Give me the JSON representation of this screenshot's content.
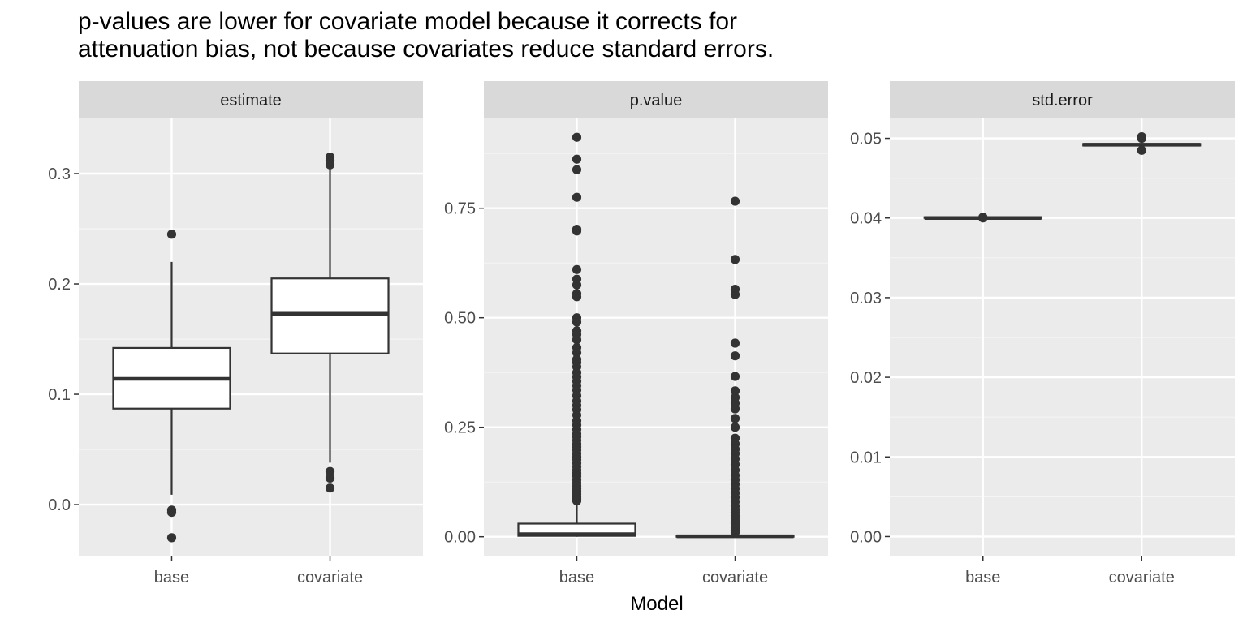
{
  "chart_data": {
    "type": "boxplot",
    "title_lines": [
      "p-values are lower for covariate model because it corrects for",
      "attenuation bias, not because covariates reduce standard errors."
    ],
    "xlabel": "Model",
    "ylabel": "",
    "categories": [
      "base",
      "covariate"
    ],
    "facets": [
      {
        "name": "estimate",
        "ylim": [
          -0.047,
          0.35
        ],
        "y_ticks": [
          0.0,
          0.1,
          0.2,
          0.3
        ],
        "y_tick_labels": [
          "0.0",
          "0.1",
          "0.2",
          "0.3"
        ],
        "y_minor": [
          -0.05,
          0.05,
          0.15,
          0.25
        ],
        "boxes": [
          {
            "category": "base",
            "lower_whisker": 0.009,
            "q1": 0.087,
            "median": 0.114,
            "q3": 0.142,
            "upper_whisker": 0.22,
            "outliers": [
              0.245,
              -0.005,
              -0.007,
              -0.03
            ]
          },
          {
            "category": "covariate",
            "lower_whisker": 0.038,
            "q1": 0.137,
            "median": 0.173,
            "q3": 0.205,
            "upper_whisker": 0.306,
            "outliers": [
              0.315,
              0.312,
              0.308,
              0.03,
              0.024,
              0.015
            ]
          }
        ]
      },
      {
        "name": "p.value",
        "ylim": [
          -0.045,
          0.955
        ],
        "y_ticks": [
          0.0,
          0.25,
          0.5,
          0.75
        ],
        "y_tick_labels": [
          "0.00",
          "0.25",
          "0.50",
          "0.75"
        ],
        "y_minor": [
          0.125,
          0.375,
          0.625,
          0.875
        ],
        "boxes": [
          {
            "category": "base",
            "lower_whisker": 0.0,
            "q1": 0.002,
            "median": 0.006,
            "q3": 0.03,
            "upper_whisker": 0.077,
            "outliers": [
              0.912,
              0.862,
              0.838,
              0.775,
              0.702,
              0.698,
              0.61,
              0.588,
              0.575,
              0.555,
              0.548,
              0.5,
              0.49,
              0.47,
              0.462,
              0.45,
              0.432,
              0.42,
              0.405,
              0.398,
              0.388,
              0.375,
              0.365,
              0.355,
              0.345,
              0.335,
              0.322,
              0.31,
              0.3,
              0.29,
              0.278,
              0.265,
              0.255,
              0.245,
              0.235,
              0.228,
              0.22,
              0.212,
              0.205,
              0.198,
              0.19,
              0.183,
              0.176,
              0.168,
              0.16,
              0.152,
              0.145,
              0.138,
              0.13,
              0.123,
              0.116,
              0.11,
              0.104,
              0.098,
              0.092,
              0.087,
              0.082
            ]
          },
          {
            "category": "covariate",
            "lower_whisker": 0.0,
            "q1": 0.0,
            "median": 0.001,
            "q3": 0.002,
            "upper_whisker": 0.005,
            "outliers": [
              0.766,
              0.633,
              0.565,
              0.553,
              0.442,
              0.413,
              0.366,
              0.333,
              0.318,
              0.305,
              0.292,
              0.27,
              0.25,
              0.225,
              0.212,
              0.2,
              0.19,
              0.178,
              0.165,
              0.152,
              0.14,
              0.13,
              0.12,
              0.11,
              0.1,
              0.09,
              0.08,
              0.07,
              0.062,
              0.055,
              0.048,
              0.042,
              0.036,
              0.03,
              0.025,
              0.02,
              0.015,
              0.01
            ]
          }
        ]
      },
      {
        "name": "std.error",
        "ylim": [
          -0.0025,
          0.0525
        ],
        "y_ticks": [
          0.0,
          0.01,
          0.02,
          0.03,
          0.04,
          0.05
        ],
        "y_tick_labels": [
          "0.00",
          "0.01",
          "0.02",
          "0.03",
          "0.04",
          "0.05"
        ],
        "y_minor": [
          0.005,
          0.015,
          0.025,
          0.035,
          0.045
        ],
        "boxes": [
          {
            "category": "base",
            "lower_whisker": 0.04,
            "q1": 0.04,
            "median": 0.04,
            "q3": 0.0401,
            "upper_whisker": 0.0402,
            "outliers": [
              0.0401,
              0.04
            ]
          },
          {
            "category": "covariate",
            "lower_whisker": 0.0491,
            "q1": 0.0491,
            "median": 0.0492,
            "q3": 0.0493,
            "upper_whisker": 0.0494,
            "outliers": [
              0.0502,
              0.05,
              0.0485
            ]
          }
        ]
      }
    ],
    "colors": {
      "panel_background": "#ebebeb",
      "strip_background": "#d9d9d9",
      "grid_major": "#ffffff",
      "grid_minor": "#f5f5f5",
      "box_fill": "#ffffff",
      "box_line": "#333333",
      "point": "#333333"
    },
    "grid": true,
    "legend": "none"
  }
}
